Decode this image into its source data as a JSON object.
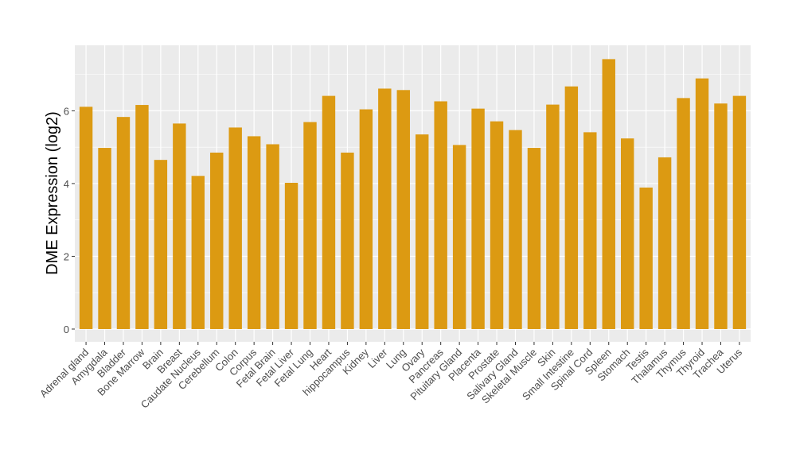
{
  "chart_data": {
    "type": "bar",
    "title": "",
    "xlabel": "",
    "ylabel": "DME Expression (log2)",
    "ylim": [
      -0.35,
      7.8
    ],
    "yticks": [
      0,
      2,
      4,
      6
    ],
    "grid": true,
    "bar_color": "#DC9A12",
    "panel_color": "#EBEBEB",
    "categories": [
      "Adrenal gland",
      "Amygdala",
      "Bladder",
      "Bone Marrow",
      "Brain",
      "Breast",
      "Caudate Nucleus",
      "Cerebellum",
      "Colon",
      "Corpus",
      "Fetal Brain",
      "Fetal Liver",
      "Fetal Lung",
      "Heart",
      "hippocampus",
      "Kidney",
      "Liver",
      "Lung",
      "Ovary",
      "Pancreas",
      "Pituitary Gland",
      "Placenta",
      "Prostate",
      "Salivary Gland",
      "Skeletal Muscle",
      "Skin",
      "Small Intestine",
      "Spinal Cord",
      "Spleen",
      "Stomach",
      "Testis",
      "Thalamus",
      "Thymus",
      "Thyroid",
      "Trachea",
      "Uterus"
    ],
    "values": [
      6.11,
      4.98,
      5.83,
      6.16,
      4.65,
      5.65,
      4.21,
      4.85,
      5.54,
      5.3,
      5.08,
      4.02,
      5.69,
      6.41,
      4.85,
      6.04,
      6.61,
      6.57,
      5.35,
      6.26,
      5.06,
      6.06,
      5.71,
      5.47,
      4.98,
      6.17,
      6.67,
      5.41,
      7.42,
      5.24,
      3.89,
      4.72,
      6.35,
      6.89,
      6.2,
      6.41
    ]
  }
}
